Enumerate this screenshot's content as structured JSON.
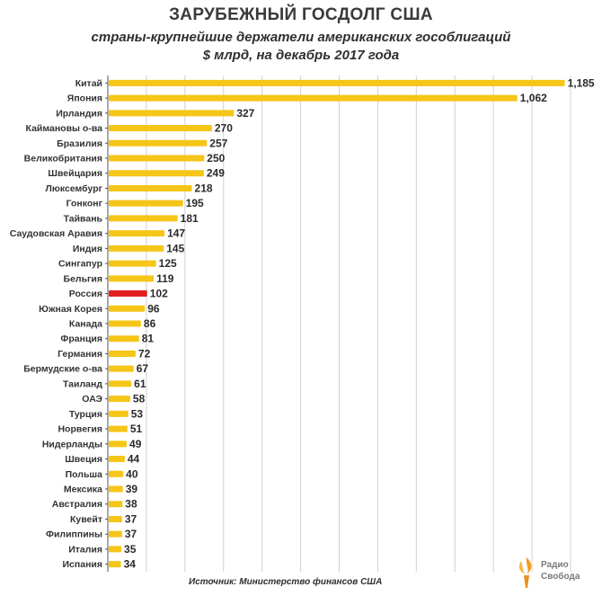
{
  "title": "ЗАРУБЕЖНЫЙ ГОСДОЛГ США",
  "subtitle_line1": "страны-крупнейшие держатели американских гособлигаций",
  "subtitle_line2": "$ млрд, на декабрь 2017 года",
  "source": "Источник: Министерство финансов США",
  "logo": {
    "line1": "Радио",
    "line2": "Свобода",
    "icon": "torch-flame-icon"
  },
  "colors": {
    "bar": "#f5c518",
    "highlight": "#e02020",
    "grid": "#d0d0d0",
    "axis": "#555555"
  },
  "chart_data": {
    "type": "bar",
    "orientation": "horizontal",
    "title": "ЗАРУБЕЖНЫЙ ГОСДОЛГ США",
    "xlabel": "",
    "ylabel": "",
    "xlim": [
      0,
      1200
    ],
    "grid": true,
    "highlight": "Россия",
    "categories": [
      "Китай",
      "Япония",
      "Ирландия",
      "Каймановы о-ва",
      "Бразилия",
      "Великобритания",
      "Швейцария",
      "Люксембург",
      "Гонконг",
      "Тайвань",
      "Саудовская Аравия",
      "Индия",
      "Сингапур",
      "Бельгия",
      "Россия",
      "Южная Корея",
      "Канада",
      "Франция",
      "Германия",
      "Бермудские о-ва",
      "Таиланд",
      "ОАЭ",
      "Турция",
      "Норвегия",
      "Нидерланды",
      "Швеция",
      "Польша",
      "Мексика",
      "Австралия",
      "Кувейт",
      "Филиппины",
      "Италия",
      "Испания"
    ],
    "values": [
      1185,
      1062,
      327,
      270,
      257,
      250,
      249,
      218,
      195,
      181,
      147,
      145,
      125,
      119,
      102,
      96,
      86,
      81,
      72,
      67,
      61,
      58,
      53,
      51,
      49,
      44,
      40,
      39,
      38,
      37,
      37,
      35,
      34
    ],
    "value_labels": [
      "1,185",
      "1,062",
      "327",
      "270",
      "257",
      "250",
      "249",
      "218",
      "195",
      "181",
      "147",
      "145",
      "125",
      "119",
      "102",
      "96",
      "86",
      "81",
      "72",
      "67",
      "61",
      "58",
      "53",
      "51",
      "49",
      "44",
      "40",
      "39",
      "38",
      "37",
      "37",
      "35",
      "34"
    ]
  }
}
